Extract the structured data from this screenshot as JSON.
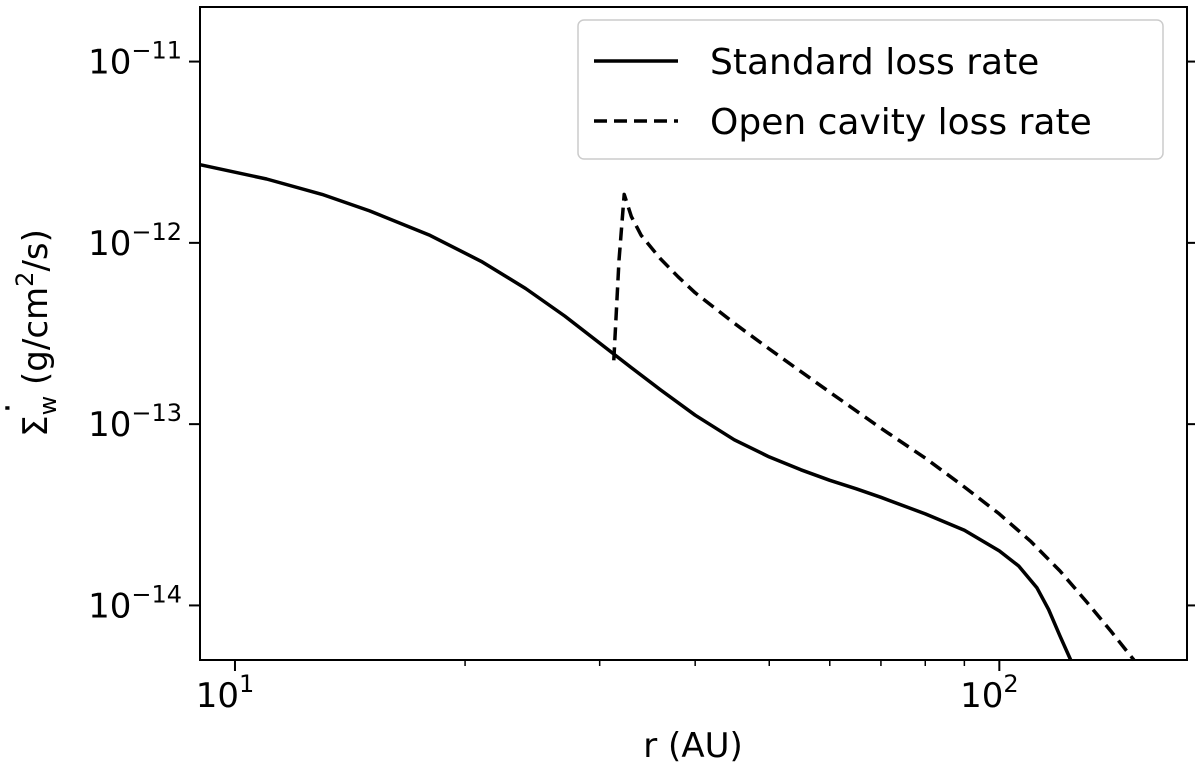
{
  "chart_data": {
    "type": "line",
    "title": "",
    "xlabel": "r (AU)",
    "ylabel": {
      "symbol": "Σ",
      "subscript": "w",
      "units_pre": " (g/cm",
      "units_exp": "2",
      "units_post": "/s)"
    },
    "xscale": "log",
    "yscale": "log",
    "xlim": [
      9.0,
      176
    ],
    "ylim": [
      5e-15,
      2e-11
    ],
    "grid": false,
    "legend_position": "top-right",
    "xticks": [
      {
        "value": 10,
        "base": "10",
        "exp": "1"
      },
      {
        "value": 100,
        "base": "10",
        "exp": "2"
      }
    ],
    "yticks": [
      {
        "value": 1e-11,
        "base": "10",
        "exp": "−11"
      },
      {
        "value": 1e-12,
        "base": "10",
        "exp": "−12"
      },
      {
        "value": 1e-13,
        "base": "10",
        "exp": "−13"
      },
      {
        "value": 1e-14,
        "base": "10",
        "exp": "−14"
      }
    ],
    "series": [
      {
        "name": "Standard loss rate",
        "style": "solid",
        "color": "#000000",
        "x": [
          9.0,
          11.0,
          13.0,
          15.0,
          18.0,
          21.0,
          24.0,
          27.0,
          30.0,
          33.0,
          36.0,
          40.0,
          45.0,
          50.0,
          55.0,
          60.0,
          65.0,
          70.0,
          80.0,
          90.0,
          100.0,
          106.0,
          112.0,
          116.0,
          120.0,
          124.0
        ],
        "y": [
          2.7e-12,
          2.25e-12,
          1.85e-12,
          1.5e-12,
          1.1e-12,
          7.9e-13,
          5.6e-13,
          3.95e-13,
          2.8e-13,
          2.05e-13,
          1.55e-13,
          1.12e-13,
          8.2e-14,
          6.6e-14,
          5.6e-14,
          4.9e-14,
          4.4e-14,
          3.95e-14,
          3.2e-14,
          2.6e-14,
          2e-14,
          1.65e-14,
          1.25e-14,
          9.5e-15,
          6.8e-15,
          5e-15
        ]
      },
      {
        "name": "Open cavity loss rate",
        "style": "dashed",
        "color": "#000000",
        "x": [
          31.3,
          31.8,
          32.3,
          33.0,
          34.0,
          36.0,
          38.0,
          40.0,
          45.0,
          50.0,
          55.0,
          60.0,
          70.0,
          80.0,
          90.0,
          100.0,
          110.0,
          120.0,
          130.0,
          140.0,
          150.0
        ],
        "y": [
          2.25e-13,
          8e-13,
          1.85e-12,
          1.4e-12,
          1.1e-12,
          8.2e-13,
          6.5e-13,
          5.3e-13,
          3.6e-13,
          2.6e-13,
          1.95e-13,
          1.5e-13,
          9.5e-14,
          6.5e-14,
          4.5e-14,
          3.2e-14,
          2.25e-14,
          1.55e-14,
          1.05e-14,
          7.2e-15,
          5e-15
        ]
      }
    ]
  }
}
